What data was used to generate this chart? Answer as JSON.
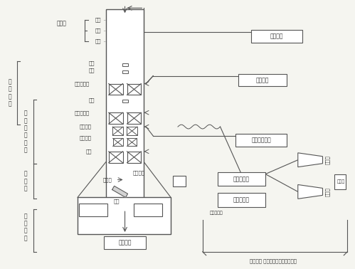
{
  "bg_color": "#f5f5f0",
  "line_color": "#555555",
  "box_color": "#ffffff",
  "text_color": "#333333",
  "title": "",
  "fig_width": 4.99,
  "fig_height": 3.78,
  "dpi": 100,
  "components": {
    "electron_gun_label": "电子枪",
    "electron_gun_parts": [
      "阴极",
      "栅极",
      "阳极"
    ],
    "aperture1": "光阑",
    "aperture2": "光阑",
    "lens1": "第一聚光镜",
    "aperture3": "光阑",
    "lens2": "第二聚光镜",
    "stigmator": "消象散器",
    "scan_coil": "扫描线圈",
    "deflect": "物镜",
    "objective": "物镜光阑",
    "electron_beam": "电子束",
    "sample": "试样",
    "vacuum": "真空系统",
    "hv_power": "高压电源",
    "lens_power": "透镜电源",
    "stig_power": "消象散器电源",
    "scan_gen": "扫描发生器",
    "video_amp": "视频放大器",
    "pmt": "光电信增管",
    "crt1": "显象管",
    "crt2": "显象管",
    "camera": "照相机",
    "signal_sys": "信号检测 放大显示系统及电源系统",
    "section1": "电子光学系统",
    "section2": "样品室",
    "section3": "真空系统"
  }
}
